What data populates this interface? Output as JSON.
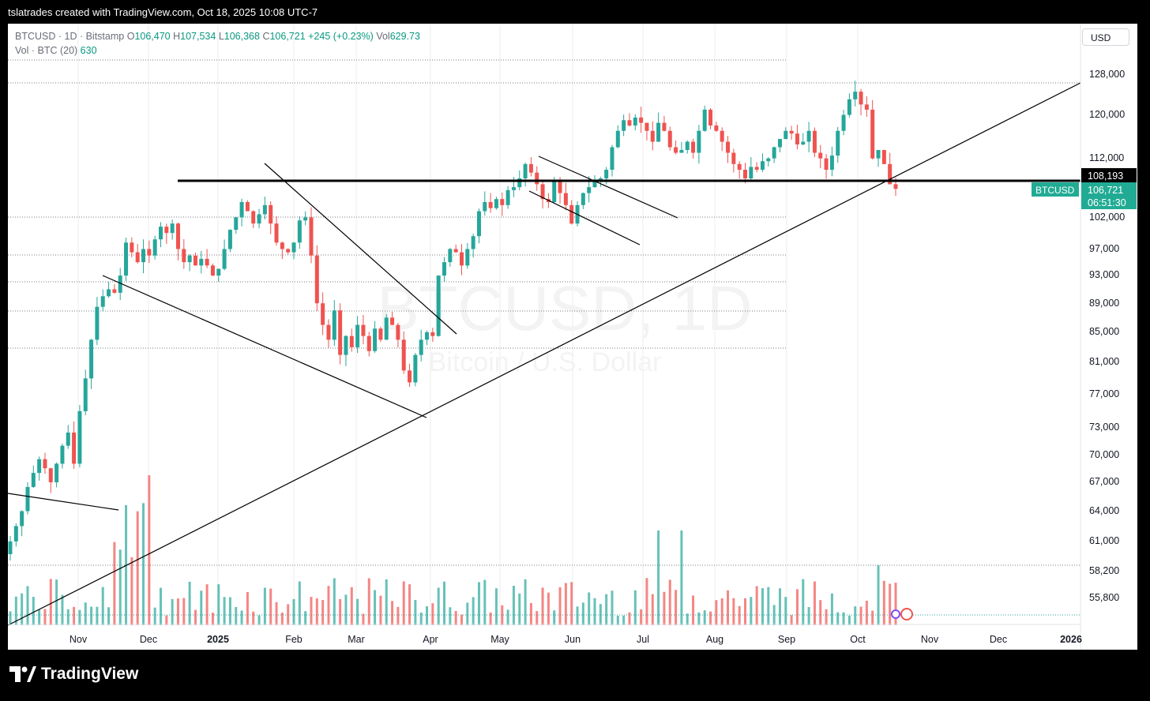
{
  "header": {
    "text": "tslatrades created with TradingView.com, Oct 18, 2025 10:08 UTC-7"
  },
  "legend": {
    "symbol": "BTCUSD · 1D · Bitstamp",
    "o_label": "O",
    "o_val": "106,470",
    "h_label": "H",
    "h_val": "107,534",
    "l_label": "L",
    "l_val": "106,368",
    "c_label": "C",
    "c_val": "106,721",
    "change": "+245 (+0.23%)",
    "vol_label": "Vol",
    "vol_val": "629.73",
    "vol_ind_label": "Vol · BTC (20)",
    "vol_ind_val": "630"
  },
  "currency_button": "USD",
  "watermark": {
    "symbol": "BTCUSD, 1D",
    "name": "Bitcoin / U.S. Dollar"
  },
  "price_axis": {
    "ticks": [
      "128,000",
      "120,000",
      "112,000",
      "102,000",
      "97,000",
      "93,000",
      "89,000",
      "85,000",
      "81,000",
      "77,000",
      "73,000",
      "70,000",
      "67,000",
      "64,000",
      "61,000",
      "58,200",
      "55,800"
    ],
    "resistance_label": "108,193",
    "symbol_tag": "BTCUSD",
    "last_price": "106,721",
    "countdown": "06:51:30"
  },
  "time_axis": {
    "ticks": [
      "Nov",
      "Dec",
      "2025",
      "Feb",
      "Mar",
      "Apr",
      "May",
      "Jun",
      "Jul",
      "Aug",
      "Sep",
      "Oct",
      "Nov",
      "Dec",
      "2026"
    ]
  },
  "colors": {
    "up": "#26a69a",
    "down": "#ef5350",
    "tag": "#22ab94",
    "grid": "#ededed"
  },
  "footer": {
    "brand": "TradingView"
  },
  "chart_data": {
    "type": "candlestick",
    "symbol": "BTCUSD",
    "timeframe": "1D",
    "ylim": [
      52000,
      131000
    ],
    "closes": [
      61000,
      62500,
      64000,
      66500,
      68000,
      69500,
      68500,
      67000,
      69000,
      71000,
      72500,
      69000,
      75000,
      79000,
      84000,
      88500,
      90000,
      91000,
      90500,
      93000,
      98000,
      96500,
      95000,
      97000,
      96000,
      98500,
      100500,
      99500,
      101000,
      97000,
      95000,
      96000,
      94500,
      95500,
      94500,
      93000,
      94000,
      97000,
      100000,
      102000,
      104500,
      103000,
      101000,
      102500,
      104000,
      101000,
      98000,
      97000,
      96500,
      98000,
      101500,
      102000,
      96000,
      89000,
      86000,
      84000,
      88000,
      82000,
      84500,
      83000,
      86000,
      84500,
      82500,
      85500,
      84000,
      87000,
      86000,
      84000,
      80000,
      78500,
      82000,
      84000,
      85000,
      84500,
      93000,
      95000,
      97000,
      96500,
      94500,
      97000,
      99000,
      103000,
      104500,
      103500,
      105000,
      104000,
      106500,
      107000,
      108500,
      111000,
      109500,
      107500,
      105000,
      104500,
      108000,
      106000,
      104000,
      101000,
      104000,
      106000,
      107000,
      108000,
      108500,
      110000,
      114000,
      117000,
      119000,
      118000,
      119500,
      118500,
      117000,
      115000,
      118500,
      117000,
      114000,
      113000,
      113500,
      115000,
      113000,
      117000,
      121000,
      118000,
      117000,
      115000,
      113000,
      111000,
      110000,
      108500,
      110500,
      110000,
      111500,
      112000,
      114000,
      115500,
      117000,
      116500,
      114500,
      115000,
      117000,
      113000,
      112000,
      110000,
      112500,
      117000,
      120000,
      123000,
      124500,
      122000,
      121000,
      112000,
      113500,
      111000,
      107500,
      106721
    ],
    "annotations": {
      "horizontal_line": 108193,
      "last_price": 106721
    }
  }
}
